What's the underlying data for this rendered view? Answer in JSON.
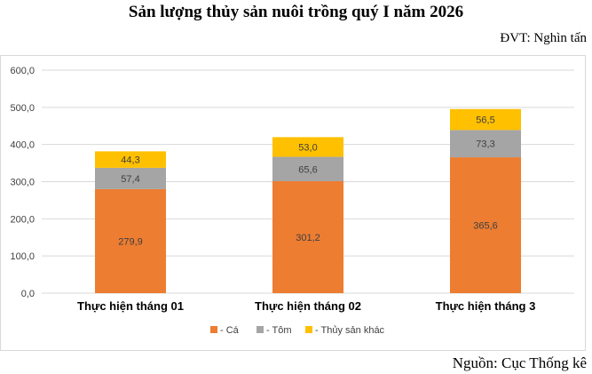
{
  "chart_data": {
    "type": "bar",
    "stacked": true,
    "title": "Sản lượng thủy sản nuôi trồng quý I năm 2026",
    "unit_label": "ĐVT: Nghìn tấn",
    "source": "Nguồn: Cục Thống kê",
    "categories": [
      "Thực hiện tháng 01",
      "Thực hiện tháng 02",
      "Thực hiện tháng 3"
    ],
    "series": [
      {
        "name": "- Cá",
        "values": [
          279.9,
          301.2,
          365.6
        ],
        "labels": [
          "279,9",
          "301,2",
          "365,6"
        ],
        "color": "#ED7D31"
      },
      {
        "name": "- Tôm",
        "values": [
          57.4,
          65.6,
          73.3
        ],
        "labels": [
          "57,4",
          "65,6",
          "73,3"
        ],
        "color": "#A5A5A5"
      },
      {
        "name": "- Thủy sản khác",
        "values": [
          44.3,
          53.0,
          56.5
        ],
        "labels": [
          "44,3",
          "53,0",
          "56,5"
        ],
        "color": "#FFC000"
      }
    ],
    "ylim": [
      0,
      600
    ],
    "yticks": [
      0,
      100,
      200,
      300,
      400,
      500,
      600
    ],
    "ytick_labels": [
      "0,0",
      "100,0",
      "200,0",
      "300,0",
      "400,0",
      "500,0",
      "600,0"
    ],
    "grid": true,
    "legend_position": "bottom"
  }
}
